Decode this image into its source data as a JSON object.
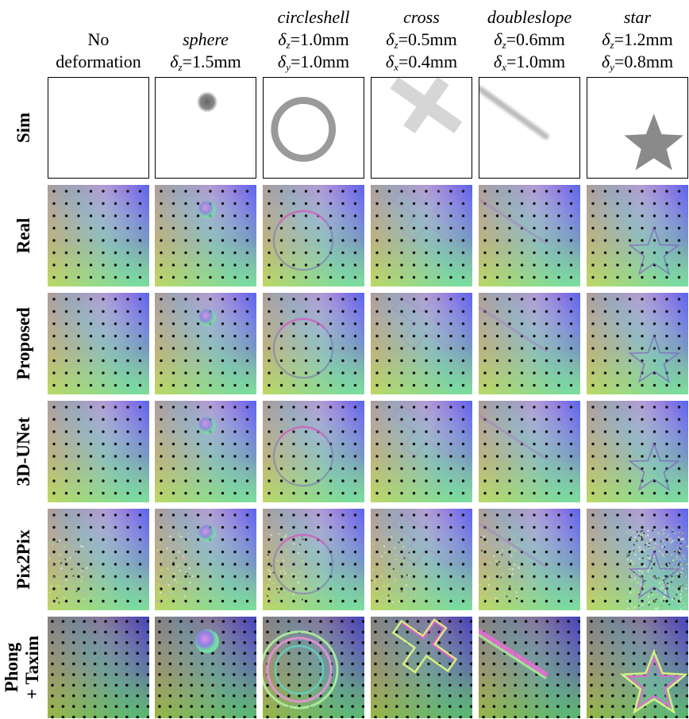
{
  "columns": [
    {
      "key": "nodef",
      "name": "",
      "lines": [
        "No",
        "deformation"
      ],
      "d1": null,
      "d2": null
    },
    {
      "key": "sphere",
      "name": "sphere",
      "lines": [],
      "d1": {
        "sym": "δ",
        "sub": "z",
        "val": "=1.5mm"
      },
      "d2": null
    },
    {
      "key": "circleshell",
      "name": "circleshell",
      "lines": [],
      "d1": {
        "sym": "δ",
        "sub": "z",
        "val": "=1.0mm"
      },
      "d2": {
        "sym": "δ",
        "sub": "y",
        "val": "=1.0mm"
      }
    },
    {
      "key": "cross",
      "name": "cross",
      "lines": [],
      "d1": {
        "sym": "δ",
        "sub": "z",
        "val": "=0.5mm"
      },
      "d2": {
        "sym": "δ",
        "sub": "x",
        "val": "=0.4mm"
      }
    },
    {
      "key": "doubleslope",
      "name": "doubleslope",
      "lines": [],
      "d1": {
        "sym": "δ",
        "sub": "z",
        "val": "=0.6mm"
      },
      "d2": {
        "sym": "δ",
        "sub": "x",
        "val": "=1.0mm"
      }
    },
    {
      "key": "star",
      "name": "star",
      "lines": [],
      "d1": {
        "sym": "δ",
        "sub": "z",
        "val": "=1.2mm"
      },
      "d2": {
        "sym": "δ",
        "sub": "y",
        "val": "=0.8mm"
      }
    }
  ],
  "rows": [
    {
      "key": "sim",
      "label": [
        "Sim"
      ]
    },
    {
      "key": "real",
      "label": [
        "Real"
      ]
    },
    {
      "key": "proposed",
      "label": [
        "Proposed"
      ]
    },
    {
      "key": "unet",
      "label": [
        "3D-UNet"
      ]
    },
    {
      "key": "pix2pix",
      "label": [
        "Pix2Pix"
      ]
    },
    {
      "key": "phong",
      "label": [
        "Phong",
        "+ Taxim"
      ]
    }
  ]
}
